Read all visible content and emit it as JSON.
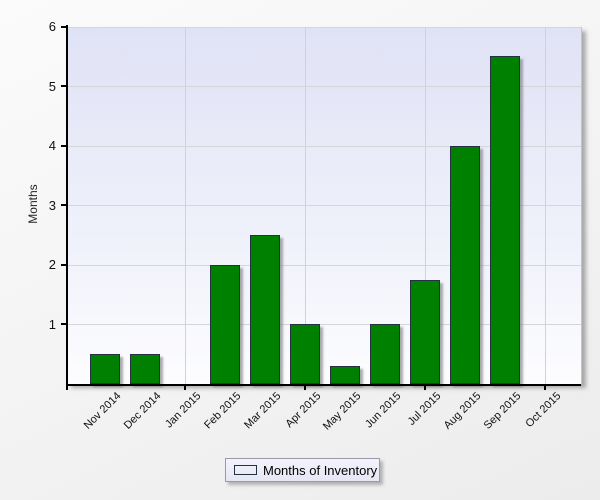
{
  "chart_data": {
    "type": "bar",
    "title": "",
    "xlabel": "",
    "ylabel": "Months",
    "categories": [
      "Nov 2014",
      "Dec 2014",
      "Jan 2015",
      "Feb 2015",
      "Mar 2015",
      "Apr 2015",
      "May 2015",
      "Jun 2015",
      "Jul 2015",
      "Aug 2015",
      "Sep 2015",
      "Oct 2015"
    ],
    "values": [
      0.5,
      0.5,
      0,
      2,
      2.5,
      1,
      0.3,
      1,
      1.75,
      4,
      5.5,
      0
    ],
    "series_name": "Months of Inventory",
    "ylim": [
      0,
      6
    ],
    "yticks": [
      1,
      2,
      3,
      4,
      5,
      6
    ],
    "x_major_tick_indices": [
      2,
      5,
      8,
      11
    ],
    "x_major_tick_labels": [
      "Jan 2015",
      "Apr 2015",
      "Jul 2015",
      "Oct 2015"
    ],
    "grid": "horizontal lines at each unit, vertical lines at quarterly ticks",
    "legend_position": "bottom-center",
    "colors": {
      "bar_fill": "#008000",
      "bar_border": "#24313F",
      "plot_bg_top": "#E0E2F6",
      "plot_bg_bottom": "#FDFDFF",
      "gridline": "#D6D6D6",
      "axis": "#000000",
      "legend_bg": "#EDEEF9",
      "legend_border": "#9A9AA6",
      "page_bg": "#F1F1F1"
    }
  }
}
